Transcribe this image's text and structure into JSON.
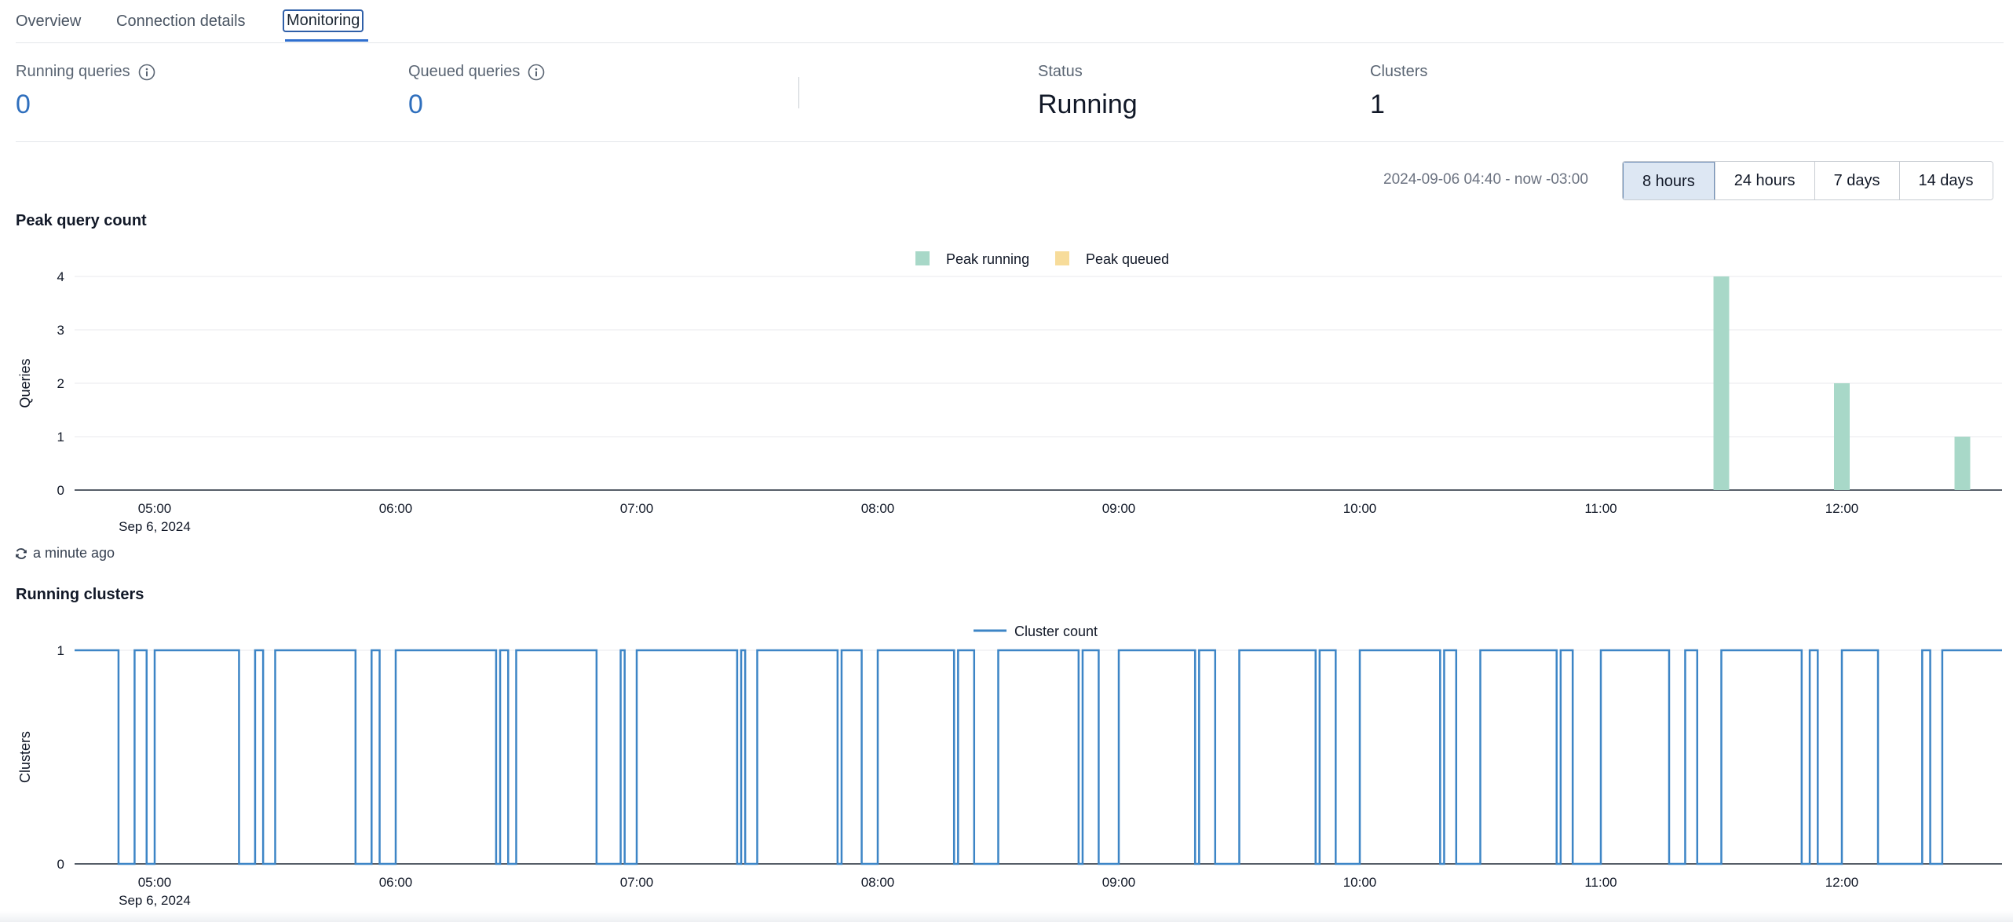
{
  "tabs": [
    {
      "label": "Overview"
    },
    {
      "label": "Connection details"
    },
    {
      "label": "Monitoring",
      "active": true
    }
  ],
  "metrics": {
    "running_queries": {
      "label": "Running queries",
      "value": "0"
    },
    "queued_queries": {
      "label": "Queued queries",
      "value": "0"
    },
    "status": {
      "label": "Status",
      "value": "Running"
    },
    "clusters": {
      "label": "Clusters",
      "value": "1"
    }
  },
  "time_range": {
    "text": "2024-09-06 04:40 - now -03:00",
    "options": [
      "8 hours",
      "24 hours",
      "7 days",
      "14 days"
    ],
    "selected": "8 hours"
  },
  "refresh": {
    "text": "a minute ago"
  },
  "colors": {
    "accent": "#2f6fcf",
    "peak_running": "#a8d8c8",
    "peak_queued": "#f7dc9a",
    "cluster_line": "#3d85c6"
  },
  "chart_data": [
    {
      "type": "bar",
      "title": "Peak query count",
      "ylabel": "Queries",
      "ylim": [
        0,
        4
      ],
      "yticks": [
        "0",
        "1",
        "2",
        "3",
        "4"
      ],
      "xticks": [
        {
          "t": "05:00",
          "label": "05:00",
          "sub": "Sep 6, 2024"
        },
        {
          "t": "06:00",
          "label": "06:00",
          "sub": ""
        },
        {
          "t": "07:00",
          "label": "07:00",
          "sub": ""
        },
        {
          "t": "08:00",
          "label": "08:00",
          "sub": ""
        },
        {
          "t": "09:00",
          "label": "09:00",
          "sub": ""
        },
        {
          "t": "10:00",
          "label": "10:00",
          "sub": ""
        },
        {
          "t": "11:00",
          "label": "11:00",
          "sub": ""
        },
        {
          "t": "12:00",
          "label": "12:00",
          "sub": ""
        }
      ],
      "series": [
        {
          "name": "Peak running",
          "color": "#a8d8c8",
          "points": [
            {
              "t": "11:30",
              "v": 4
            },
            {
              "t": "12:00",
              "v": 2
            },
            {
              "t": "12:30",
              "v": 1
            }
          ]
        },
        {
          "name": "Peak queued",
          "color": "#f7dc9a",
          "points": []
        }
      ]
    },
    {
      "type": "line",
      "title": "Running clusters",
      "ylabel": "Clusters",
      "ylim": [
        0,
        1
      ],
      "yticks": [
        "0",
        "1"
      ],
      "xticks": [
        {
          "t": "05:00",
          "label": "05:00",
          "sub": "Sep 6, 2024"
        },
        {
          "t": "06:00",
          "label": "06:00",
          "sub": ""
        },
        {
          "t": "07:00",
          "label": "07:00",
          "sub": ""
        },
        {
          "t": "08:00",
          "label": "08:00",
          "sub": ""
        },
        {
          "t": "09:00",
          "label": "09:00",
          "sub": ""
        },
        {
          "t": "10:00",
          "label": "10:00",
          "sub": ""
        },
        {
          "t": "11:00",
          "label": "11:00",
          "sub": ""
        },
        {
          "t": "12:00",
          "label": "12:00",
          "sub": ""
        }
      ],
      "series": [
        {
          "name": "Cluster count",
          "color": "#3d85c6",
          "step": true,
          "points": [
            {
              "t": "04:40",
              "v": 1
            },
            {
              "t": "04:51",
              "v": 0
            },
            {
              "t": "04:55",
              "v": 1
            },
            {
              "t": "04:58",
              "v": 0
            },
            {
              "t": "05:00",
              "v": 1
            },
            {
              "t": "05:21",
              "v": 0
            },
            {
              "t": "05:25",
              "v": 1
            },
            {
              "t": "05:27",
              "v": 0
            },
            {
              "t": "05:30",
              "v": 1
            },
            {
              "t": "05:50",
              "v": 0
            },
            {
              "t": "05:54",
              "v": 1
            },
            {
              "t": "05:56",
              "v": 0
            },
            {
              "t": "06:00",
              "v": 1
            },
            {
              "t": "06:25",
              "v": 0
            },
            {
              "t": "06:26",
              "v": 1
            },
            {
              "t": "06:28",
              "v": 0
            },
            {
              "t": "06:30",
              "v": 1
            },
            {
              "t": "06:50",
              "v": 0
            },
            {
              "t": "06:56",
              "v": 1
            },
            {
              "t": "06:57",
              "v": 0
            },
            {
              "t": "07:00",
              "v": 1
            },
            {
              "t": "07:25",
              "v": 0
            },
            {
              "t": "07:26",
              "v": 1
            },
            {
              "t": "07:27",
              "v": 0
            },
            {
              "t": "07:30",
              "v": 1
            },
            {
              "t": "07:50",
              "v": 0
            },
            {
              "t": "07:51",
              "v": 1
            },
            {
              "t": "07:56",
              "v": 0
            },
            {
              "t": "08:00",
              "v": 1
            },
            {
              "t": "08:19",
              "v": 0
            },
            {
              "t": "08:20",
              "v": 1
            },
            {
              "t": "08:24",
              "v": 0
            },
            {
              "t": "08:30",
              "v": 1
            },
            {
              "t": "08:50",
              "v": 0
            },
            {
              "t": "08:51",
              "v": 1
            },
            {
              "t": "08:55",
              "v": 0
            },
            {
              "t": "09:00",
              "v": 1
            },
            {
              "t": "09:19",
              "v": 0
            },
            {
              "t": "09:20",
              "v": 1
            },
            {
              "t": "09:24",
              "v": 0
            },
            {
              "t": "09:30",
              "v": 1
            },
            {
              "t": "09:49",
              "v": 0
            },
            {
              "t": "09:50",
              "v": 1
            },
            {
              "t": "09:54",
              "v": 0
            },
            {
              "t": "10:00",
              "v": 1
            },
            {
              "t": "10:20",
              "v": 0
            },
            {
              "t": "10:21",
              "v": 1
            },
            {
              "t": "10:24",
              "v": 0
            },
            {
              "t": "10:30",
              "v": 1
            },
            {
              "t": "10:49",
              "v": 0
            },
            {
              "t": "10:50",
              "v": 1
            },
            {
              "t": "10:53",
              "v": 0
            },
            {
              "t": "11:00",
              "v": 1
            },
            {
              "t": "11:17",
              "v": 0
            },
            {
              "t": "11:21",
              "v": 1
            },
            {
              "t": "11:24",
              "v": 0
            },
            {
              "t": "11:30",
              "v": 1
            },
            {
              "t": "11:50",
              "v": 0
            },
            {
              "t": "11:52",
              "v": 1
            },
            {
              "t": "11:54",
              "v": 0
            },
            {
              "t": "12:00",
              "v": 1
            },
            {
              "t": "12:09",
              "v": 0
            },
            {
              "t": "12:20",
              "v": 1
            },
            {
              "t": "12:22",
              "v": 0
            },
            {
              "t": "12:25",
              "v": 1
            },
            {
              "t": "12:48",
              "v": 1
            }
          ]
        }
      ]
    }
  ]
}
